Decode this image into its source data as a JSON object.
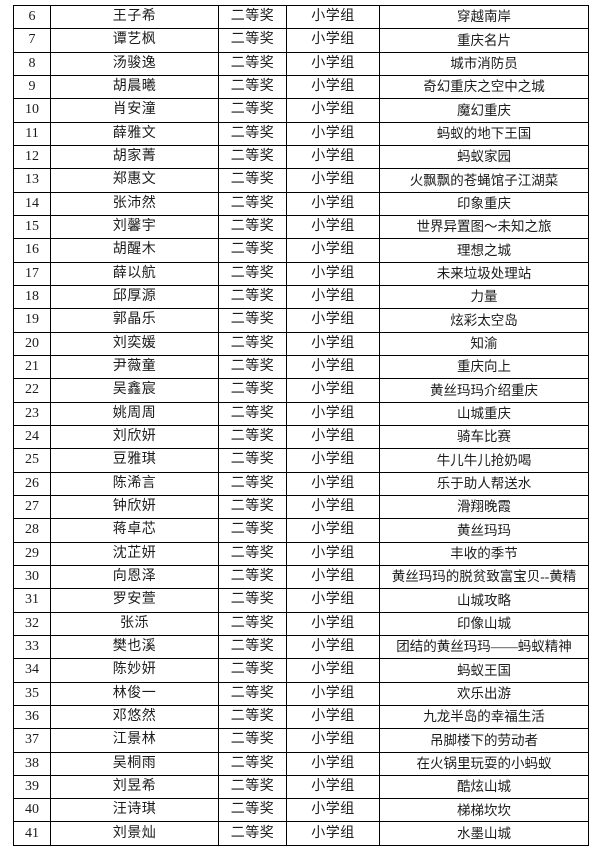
{
  "page": {
    "background": "#ffffff"
  },
  "table": {
    "border_color": "#000000",
    "text_color": "#1b1b1b",
    "award_label": "二等奖",
    "group_label": "小学组",
    "rows": [
      {
        "number": "6",
        "name": "王子希",
        "award": "二等奖",
        "group": "小学组",
        "title": "穿越南岸"
      },
      {
        "number": "7",
        "name": "谭艺枫",
        "award": "二等奖",
        "group": "小学组",
        "title": "重庆名片"
      },
      {
        "number": "8",
        "name": "汤骏逸",
        "award": "二等奖",
        "group": "小学组",
        "title": "城市消防员"
      },
      {
        "number": "9",
        "name": "胡晨曦",
        "award": "二等奖",
        "group": "小学组",
        "title": "奇幻重庆之空中之城"
      },
      {
        "number": "10",
        "name": "肖安潼",
        "award": "二等奖",
        "group": "小学组",
        "title": "魔幻重庆"
      },
      {
        "number": "11",
        "name": "薛雅文",
        "award": "二等奖",
        "group": "小学组",
        "title": "蚂蚁的地下王国"
      },
      {
        "number": "12",
        "name": "胡家菁",
        "award": "二等奖",
        "group": "小学组",
        "title": "蚂蚁家园"
      },
      {
        "number": "13",
        "name": "郑惠文",
        "award": "二等奖",
        "group": "小学组",
        "title": "火飘飘的苍蝇馆子江湖菜"
      },
      {
        "number": "14",
        "name": "张沛然",
        "award": "二等奖",
        "group": "小学组",
        "title": "印象重庆"
      },
      {
        "number": "15",
        "name": "刘馨宇",
        "award": "二等奖",
        "group": "小学组",
        "title": "世界异置图～未知之旅"
      },
      {
        "number": "16",
        "name": "胡醒木",
        "award": "二等奖",
        "group": "小学组",
        "title": "理想之城"
      },
      {
        "number": "17",
        "name": "薛以航",
        "award": "二等奖",
        "group": "小学组",
        "title": "未来垃圾处理站"
      },
      {
        "number": "18",
        "name": "邱厚源",
        "award": "二等奖",
        "group": "小学组",
        "title": "力量"
      },
      {
        "number": "19",
        "name": "郭晶乐",
        "award": "二等奖",
        "group": "小学组",
        "title": "炫彩太空岛"
      },
      {
        "number": "20",
        "name": "刘奕媛",
        "award": "二等奖",
        "group": "小学组",
        "title": "知渝"
      },
      {
        "number": "21",
        "name": "尹薇童",
        "award": "二等奖",
        "group": "小学组",
        "title": "重庆向上"
      },
      {
        "number": "22",
        "name": "吴鑫宸",
        "award": "二等奖",
        "group": "小学组",
        "title": "黄丝玛玛介绍重庆"
      },
      {
        "number": "23",
        "name": "姚周周",
        "award": "二等奖",
        "group": "小学组",
        "title": "山城重庆"
      },
      {
        "number": "24",
        "name": "刘欣妍",
        "award": "二等奖",
        "group": "小学组",
        "title": "骑车比赛"
      },
      {
        "number": "25",
        "name": "豆雅琪",
        "award": "二等奖",
        "group": "小学组",
        "title": "牛儿牛儿抢奶喝"
      },
      {
        "number": "26",
        "name": "陈浠言",
        "award": "二等奖",
        "group": "小学组",
        "title": "乐于助人帮送水"
      },
      {
        "number": "27",
        "name": "钟欣妍",
        "award": "二等奖",
        "group": "小学组",
        "title": "滑翔晚霞"
      },
      {
        "number": "28",
        "name": "蒋卓芯",
        "award": "二等奖",
        "group": "小学组",
        "title": "黄丝玛玛"
      },
      {
        "number": "29",
        "name": "沈芷妍",
        "award": "二等奖",
        "group": "小学组",
        "title": "丰收的季节"
      },
      {
        "number": "30",
        "name": "向恩泽",
        "award": "二等奖",
        "group": "小学组",
        "title": "黄丝玛玛的脱贫致富宝贝--黄精"
      },
      {
        "number": "31",
        "name": "罗安萱",
        "award": "二等奖",
        "group": "小学组",
        "title": "山城攻略"
      },
      {
        "number": "32",
        "name": "张泺",
        "award": "二等奖",
        "group": "小学组",
        "title": "印像山城"
      },
      {
        "number": "33",
        "name": "樊也溪",
        "award": "二等奖",
        "group": "小学组",
        "title": "团结的黄丝玛玛——蚂蚁精神"
      },
      {
        "number": "34",
        "name": "陈妙妍",
        "award": "二等奖",
        "group": "小学组",
        "title": "蚂蚁王国"
      },
      {
        "number": "35",
        "name": "林俊一",
        "award": "二等奖",
        "group": "小学组",
        "title": "欢乐出游"
      },
      {
        "number": "36",
        "name": "邓悠然",
        "award": "二等奖",
        "group": "小学组",
        "title": "九龙半岛的幸福生活"
      },
      {
        "number": "37",
        "name": "江景林",
        "award": "二等奖",
        "group": "小学组",
        "title": "吊脚楼下的劳动者"
      },
      {
        "number": "38",
        "name": "吴桐雨",
        "award": "二等奖",
        "group": "小学组",
        "title": "在火锅里玩耍的小蚂蚁"
      },
      {
        "number": "39",
        "name": "刘昱希",
        "award": "二等奖",
        "group": "小学组",
        "title": "酷炫山城"
      },
      {
        "number": "40",
        "name": "汪诗琪",
        "award": "二等奖",
        "group": "小学组",
        "title": "梯梯坎坎"
      },
      {
        "number": "41",
        "name": "刘景灿",
        "award": "二等奖",
        "group": "小学组",
        "title": "水墨山城"
      }
    ]
  }
}
